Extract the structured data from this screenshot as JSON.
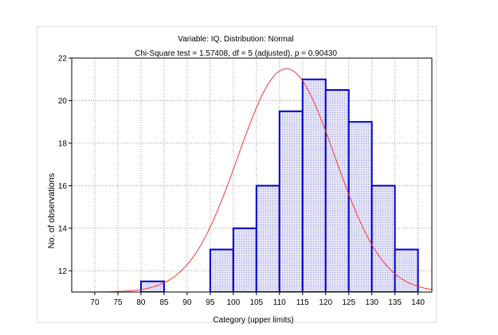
{
  "chart_data": {
    "type": "bar",
    "title": "Variable: IQ, Distribution: Normal",
    "subtitle": "Chi-Square test = 1.57408, df = 5 (adjusted), p = 0.90430",
    "xlabel": "Category (upper limits)",
    "ylabel": "No. of observations",
    "grid": true,
    "ylim": [
      11,
      22
    ],
    "yticks": [
      12,
      14,
      16,
      18,
      20,
      22
    ],
    "xticks": [
      70,
      75,
      80,
      85,
      90,
      95,
      100,
      105,
      110,
      115,
      120,
      125,
      130,
      135,
      140
    ],
    "xlim": [
      65,
      143
    ],
    "bars": [
      {
        "upper": 85,
        "value": 11.5
      },
      {
        "upper": 100,
        "value": 13
      },
      {
        "upper": 105,
        "value": 14
      },
      {
        "upper": 110,
        "value": 16
      },
      {
        "upper": 115,
        "value": 19.5
      },
      {
        "upper": 120,
        "value": 21
      },
      {
        "upper": 125,
        "value": 20.5
      },
      {
        "upper": 130,
        "value": 19
      },
      {
        "upper": 135,
        "value": 16
      },
      {
        "upper": 140,
        "value": 13
      }
    ],
    "bar_fill": "#d6d6f2",
    "bar_edge": "#0000cc",
    "curve_color": "#ff3333",
    "normal_curve": {
      "mean": 111.5,
      "peak": 21.5,
      "sd": 10.5
    }
  }
}
